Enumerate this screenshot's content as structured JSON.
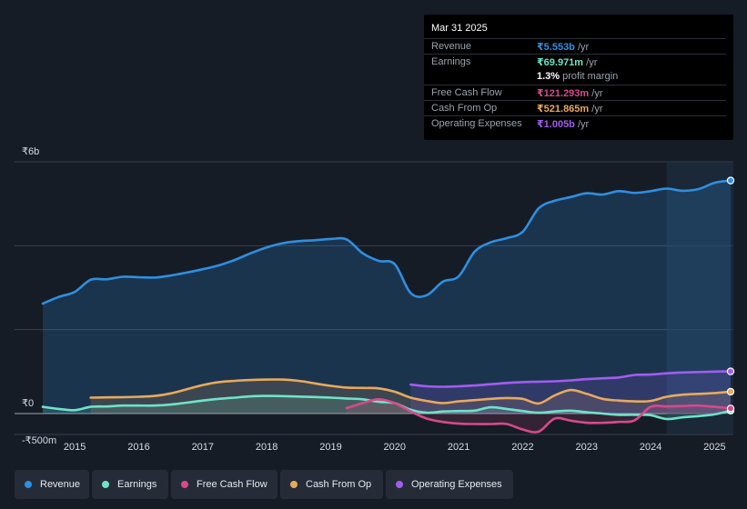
{
  "tooltip": {
    "date": "Mar 31 2025",
    "rows": [
      {
        "label": "Revenue",
        "value": "₹5.553b",
        "unit": "/yr",
        "color": "#2f8fe0"
      },
      {
        "label": "Earnings",
        "value": "₹69.971m",
        "unit": "/yr",
        "color": "#6ee3c8"
      },
      {
        "label": "",
        "value": "1.3%",
        "unit": "profit margin",
        "color": "#ffffff"
      },
      {
        "label": "Free Cash Flow",
        "value": "₹121.293m",
        "unit": "/yr",
        "color": "#d64a8b"
      },
      {
        "label": "Cash From Op",
        "value": "₹521.865m",
        "unit": "/yr",
        "color": "#e8a95c"
      },
      {
        "label": "Operating Expenses",
        "value": "₹1.005b",
        "unit": "/yr",
        "color": "#a35cf0"
      }
    ]
  },
  "legend": [
    {
      "label": "Revenue",
      "color": "#2f8fe0"
    },
    {
      "label": "Earnings",
      "color": "#6ee3c8"
    },
    {
      "label": "Free Cash Flow",
      "color": "#d64a8b"
    },
    {
      "label": "Cash From Op",
      "color": "#e8a95c"
    },
    {
      "label": "Operating Expenses",
      "color": "#a35cf0"
    }
  ],
  "chart_data": {
    "type": "line",
    "title": "",
    "xlabel": "",
    "ylabel": "",
    "y_tick_labels": [
      "₹6b",
      "₹0",
      "-₹500m"
    ],
    "y_ticks": [
      6000,
      0,
      -500
    ],
    "x_tick_labels": [
      "2015",
      "2016",
      "2017",
      "2018",
      "2019",
      "2020",
      "2021",
      "2022",
      "2023",
      "2024",
      "2025"
    ],
    "x_ticks": [
      2015,
      2016,
      2017,
      2018,
      2019,
      2020,
      2021,
      2022,
      2023,
      2024,
      2025
    ],
    "xlim": [
      2014.5,
      2025.25
    ],
    "ylim": [
      -500,
      6000
    ],
    "highlight_from": 2024.25,
    "series": [
      {
        "name": "Revenue",
        "color": "#2f8fe0",
        "x": [
          2014.5,
          2014.75,
          2015.0,
          2015.25,
          2015.5,
          2015.75,
          2016.0,
          2016.25,
          2016.5,
          2016.75,
          2017.0,
          2017.25,
          2017.5,
          2017.75,
          2018.0,
          2018.25,
          2018.5,
          2018.75,
          2019.0,
          2019.25,
          2019.5,
          2019.75,
          2020.0,
          2020.25,
          2020.5,
          2020.75,
          2021.0,
          2021.25,
          2021.5,
          2021.75,
          2022.0,
          2022.25,
          2022.5,
          2022.75,
          2023.0,
          2023.25,
          2023.5,
          2023.75,
          2024.0,
          2024.25,
          2024.5,
          2024.75,
          2025.0,
          2025.25
        ],
        "values": [
          2620,
          2780,
          2900,
          3190,
          3200,
          3260,
          3250,
          3240,
          3290,
          3360,
          3440,
          3530,
          3660,
          3820,
          3960,
          4060,
          4110,
          4130,
          4160,
          4150,
          3820,
          3640,
          3560,
          2870,
          2820,
          3140,
          3270,
          3860,
          4080,
          4180,
          4330,
          4890,
          5070,
          5160,
          5250,
          5220,
          5300,
          5260,
          5300,
          5360,
          5310,
          5350,
          5500,
          5553
        ]
      },
      {
        "name": "Earnings",
        "color": "#6ee3c8",
        "x": [
          2014.5,
          2014.75,
          2015.0,
          2015.25,
          2015.5,
          2015.75,
          2016.0,
          2016.25,
          2016.5,
          2016.75,
          2017.0,
          2017.25,
          2017.5,
          2017.75,
          2018.0,
          2018.25,
          2018.5,
          2018.75,
          2019.0,
          2019.25,
          2019.5,
          2019.75,
          2020.0,
          2020.25,
          2020.5,
          2020.75,
          2021.0,
          2021.25,
          2021.5,
          2021.75,
          2022.0,
          2022.25,
          2022.5,
          2022.75,
          2023.0,
          2023.25,
          2023.5,
          2023.75,
          2024.0,
          2024.25,
          2024.5,
          2024.75,
          2025.0,
          2025.25
        ],
        "values": [
          160,
          110,
          80,
          160,
          170,
          190,
          190,
          190,
          215,
          260,
          310,
          350,
          380,
          410,
          420,
          415,
          405,
          395,
          380,
          360,
          340,
          280,
          250,
          90,
          20,
          50,
          60,
          70,
          150,
          110,
          60,
          20,
          50,
          70,
          30,
          0,
          -30,
          -30,
          -40,
          -130,
          -90,
          -60,
          -20,
          70
        ]
      },
      {
        "name": "Free Cash Flow",
        "color": "#d64a8b",
        "x": [
          2019.25,
          2019.5,
          2019.75,
          2020.0,
          2020.25,
          2020.5,
          2020.75,
          2021.0,
          2021.25,
          2021.5,
          2021.75,
          2022.0,
          2022.25,
          2022.5,
          2022.75,
          2023.0,
          2023.25,
          2023.5,
          2023.75,
          2024.0,
          2024.25,
          2024.5,
          2024.75,
          2025.0,
          2025.25
        ],
        "values": [
          130,
          250,
          340,
          250,
          50,
          -120,
          -200,
          -240,
          -250,
          -250,
          -250,
          -380,
          -430,
          -120,
          -170,
          -220,
          -220,
          -200,
          -160,
          160,
          170,
          180,
          190,
          160,
          121
        ]
      },
      {
        "name": "Cash From Op",
        "color": "#e8a95c",
        "x": [
          2015.25,
          2015.5,
          2015.75,
          2016.0,
          2016.25,
          2016.5,
          2016.75,
          2017.0,
          2017.25,
          2017.5,
          2017.75,
          2018.0,
          2018.25,
          2018.5,
          2018.75,
          2019.0,
          2019.25,
          2019.5,
          2019.75,
          2020.0,
          2020.25,
          2020.5,
          2020.75,
          2021.0,
          2021.25,
          2021.5,
          2021.75,
          2022.0,
          2022.25,
          2022.5,
          2022.75,
          2023.0,
          2023.25,
          2023.5,
          2023.75,
          2024.0,
          2024.25,
          2024.5,
          2024.75,
          2025.0,
          2025.25
        ],
        "values": [
          380,
          385,
          390,
          400,
          420,
          480,
          580,
          680,
          750,
          780,
          800,
          810,
          810,
          780,
          720,
          660,
          620,
          610,
          600,
          520,
          380,
          300,
          250,
          290,
          320,
          350,
          370,
          350,
          240,
          430,
          560,
          470,
          350,
          310,
          290,
          300,
          400,
          450,
          470,
          490,
          522
        ]
      },
      {
        "name": "Operating Expenses",
        "color": "#a35cf0",
        "x": [
          2020.25,
          2020.5,
          2020.75,
          2021.0,
          2021.25,
          2021.5,
          2021.75,
          2022.0,
          2022.25,
          2022.5,
          2022.75,
          2023.0,
          2023.25,
          2023.5,
          2023.75,
          2024.0,
          2024.25,
          2024.5,
          2024.75,
          2025.0,
          2025.25
        ],
        "values": [
          690,
          650,
          640,
          650,
          670,
          700,
          730,
          750,
          760,
          770,
          790,
          820,
          840,
          860,
          920,
          930,
          960,
          980,
          990,
          1000,
          1005
        ]
      }
    ]
  }
}
